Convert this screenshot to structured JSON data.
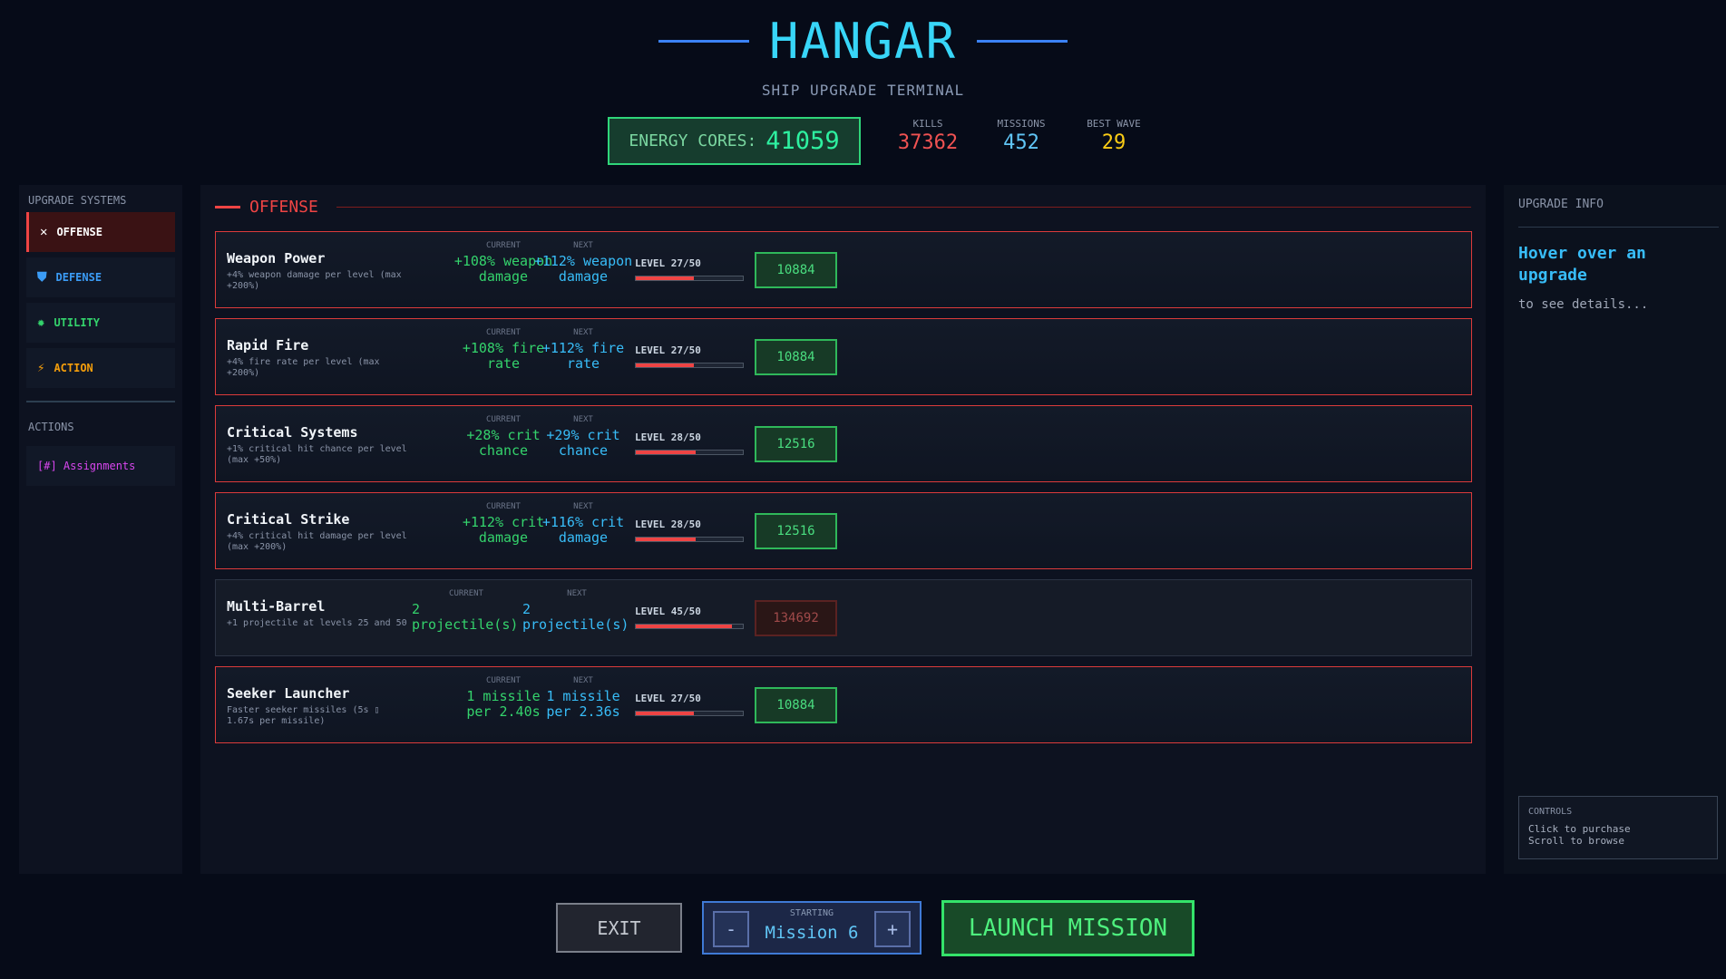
{
  "header": {
    "title": "HANGAR",
    "subtitle": "SHIP UPGRADE TERMINAL",
    "energy_label": "ENERGY CORES:",
    "energy_value": "41059",
    "stats": [
      {
        "label": "KILLS",
        "value": "37362",
        "color": "#f05252"
      },
      {
        "label": "MISSIONS",
        "value": "452",
        "color": "#60c5f5"
      },
      {
        "label": "BEST WAVE",
        "value": "29",
        "color": "#facc15"
      }
    ]
  },
  "sidebar": {
    "heading": "UPGRADE SYSTEMS",
    "items": [
      {
        "label": "OFFENSE",
        "icon": "crossed-swords-icon",
        "glyph": "✕",
        "color": "#ffffff",
        "active": true
      },
      {
        "label": "DEFENSE",
        "icon": "shield-icon",
        "glyph": "⛊",
        "color": "#3b9cf6",
        "active": false
      },
      {
        "label": "UTILITY",
        "icon": "gear-icon",
        "glyph": "✹",
        "color": "#34d36c",
        "active": false
      },
      {
        "label": "ACTION",
        "icon": "lightning-icon",
        "glyph": "⚡",
        "color": "#f59e0b",
        "active": false
      }
    ],
    "actions_heading": "ACTIONS",
    "assignments_label": "[#] Assignments"
  },
  "main": {
    "section_title": "OFFENSE",
    "current_label": "CURRENT",
    "next_label": "NEXT",
    "upgrades": [
      {
        "name": "Weapon Power",
        "desc": "+4% weapon damage per level (max +200%)",
        "current": "+108% weapon damage",
        "next": "+112% weapon damage",
        "level": "LEVEL 27/50",
        "progress": 0.54,
        "cost": "10884",
        "affordable": true
      },
      {
        "name": "Rapid Fire",
        "desc": "+4% fire rate per level (max +200%)",
        "current": "+108% fire rate",
        "next": "+112% fire rate",
        "level": "LEVEL 27/50",
        "progress": 0.54,
        "cost": "10884",
        "affordable": true
      },
      {
        "name": "Critical Systems",
        "desc": "+1% critical hit chance per level (max +50%)",
        "current": "+28% crit chance",
        "next": "+29% crit chance",
        "level": "LEVEL 28/50",
        "progress": 0.56,
        "cost": "12516",
        "affordable": true
      },
      {
        "name": "Critical Strike",
        "desc": "+4% critical hit damage per level (max +200%)",
        "current": "+112% crit damage",
        "next": "+116% crit damage",
        "level": "LEVEL 28/50",
        "progress": 0.56,
        "cost": "12516",
        "affordable": true
      },
      {
        "name": "Multi-Barrel",
        "desc": "+1 projectile at levels 25 and 50",
        "current": "2 projectile(s)",
        "next": "2 projectile(s)",
        "level": "LEVEL 45/50",
        "progress": 0.9,
        "cost": "134692",
        "affordable": false
      },
      {
        "name": "Seeker Launcher",
        "desc": "Faster seeker missiles (5s ▯ 1.67s per missile)",
        "current": "1 missile per 2.40s",
        "next": "1 missile per 2.36s",
        "level": "LEVEL 27/50",
        "progress": 0.54,
        "cost": "10884",
        "affordable": true
      }
    ]
  },
  "info_panel": {
    "heading": "UPGRADE INFO",
    "title": "Hover over an upgrade",
    "subtitle": "to see details...",
    "controls_heading": "CONTROLS",
    "controls": [
      "Click to purchase",
      "Scroll to browse"
    ]
  },
  "footer": {
    "exit_label": "EXIT",
    "starting_label": "STARTING",
    "mission_value": "Mission 6",
    "minus_label": "-",
    "plus_label": "+",
    "launch_label": "LAUNCH MISSION"
  }
}
